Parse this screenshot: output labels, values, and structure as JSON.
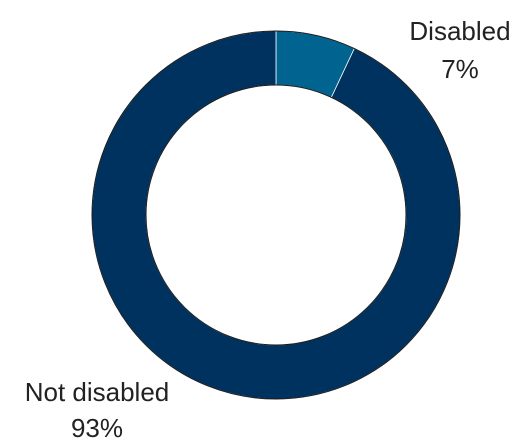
{
  "chart_data": {
    "type": "pie",
    "donut": true,
    "categories": [
      "Disabled",
      "Not disabled"
    ],
    "values": [
      7,
      93
    ],
    "value_labels": [
      "7%",
      "93%"
    ],
    "colors": [
      "#006390",
      "#00325F"
    ],
    "start_angle_deg": 0,
    "direction": "clockwise",
    "title": "",
    "legend": "none"
  }
}
